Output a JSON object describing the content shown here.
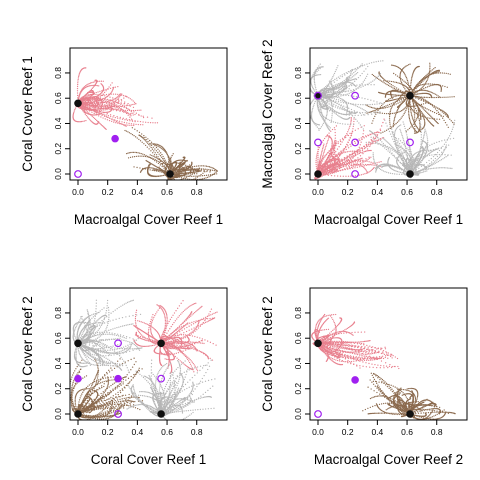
{
  "colors": {
    "pink": "#e8808e",
    "brown": "#8b6a4e",
    "gray": "#b6b6b6",
    "black": "#111111",
    "purple": "#a020f0",
    "axis": "#000000"
  },
  "chart_data": [
    {
      "type": "scatter",
      "xlabel": "Macroalgal Cover Reef 1",
      "ylabel": "Coral Cover Reef 1",
      "xlim": [
        0,
        0.95
      ],
      "ylim": [
        0,
        0.95
      ],
      "xticks": [
        "0.0",
        "0.2",
        "0.4",
        "0.6",
        "0.8"
      ],
      "yticks": [
        "0.0",
        "0.2",
        "0.4",
        "0.6",
        "0.8"
      ],
      "basins": [
        {
          "color": "pink",
          "target": [
            0.0,
            0.56
          ]
        },
        {
          "color": "brown",
          "target": [
            0.62,
            0.0
          ]
        }
      ],
      "equilibria": [
        {
          "x": 0.0,
          "y": 0.56,
          "marker": "filled",
          "color": "black"
        },
        {
          "x": 0.62,
          "y": 0.0,
          "marker": "filled",
          "color": "black"
        },
        {
          "x": 0.25,
          "y": 0.28,
          "marker": "filled",
          "color": "purple"
        },
        {
          "x": 0.0,
          "y": 0.0,
          "marker": "open",
          "color": "purple"
        }
      ]
    },
    {
      "type": "scatter",
      "xlabel": "Macroalgal Cover Reef 1",
      "ylabel": "Macroalgal Cover Reef 2",
      "xlim": [
        0,
        0.95
      ],
      "ylim": [
        0,
        0.95
      ],
      "xticks": [
        "0.0",
        "0.2",
        "0.4",
        "0.6",
        "0.8"
      ],
      "yticks": [
        "0.0",
        "0.2",
        "0.4",
        "0.6",
        "0.8"
      ],
      "basins": [
        {
          "color": "brown",
          "target": [
            0.62,
            0.62
          ]
        },
        {
          "color": "pink",
          "target": [
            0.0,
            0.0
          ]
        },
        {
          "color": "gray",
          "target": [
            0.0,
            0.62
          ]
        },
        {
          "color": "gray",
          "target": [
            0.62,
            0.0
          ]
        }
      ],
      "equilibria": [
        {
          "x": 0.0,
          "y": 0.62,
          "marker": "filled",
          "color": "black"
        },
        {
          "x": 0.62,
          "y": 0.62,
          "marker": "filled",
          "color": "black"
        },
        {
          "x": 0.0,
          "y": 0.0,
          "marker": "filled",
          "color": "black"
        },
        {
          "x": 0.62,
          "y": 0.0,
          "marker": "filled",
          "color": "black"
        },
        {
          "x": 0.25,
          "y": 0.62,
          "marker": "open",
          "color": "purple"
        },
        {
          "x": 0.0,
          "y": 0.25,
          "marker": "open",
          "color": "purple"
        },
        {
          "x": 0.25,
          "y": 0.25,
          "marker": "open",
          "color": "purple"
        },
        {
          "x": 0.62,
          "y": 0.25,
          "marker": "open",
          "color": "purple"
        },
        {
          "x": 0.25,
          "y": 0.0,
          "marker": "open",
          "color": "purple"
        },
        {
          "x": 0.0,
          "y": 0.62,
          "marker": "open",
          "color": "purple"
        }
      ]
    },
    {
      "type": "scatter",
      "xlabel": "Coral Cover Reef 1",
      "ylabel": "Coral Cover Reef 2",
      "xlim": [
        0,
        0.95
      ],
      "ylim": [
        0,
        0.95
      ],
      "xticks": [
        "0.0",
        "0.2",
        "0.4",
        "0.6",
        "0.8"
      ],
      "yticks": [
        "0.0",
        "0.2",
        "0.4",
        "0.6",
        "0.8"
      ],
      "basins": [
        {
          "color": "brown",
          "target": [
            0.0,
            0.0
          ]
        },
        {
          "color": "pink",
          "target": [
            0.56,
            0.56
          ]
        },
        {
          "color": "gray",
          "target": [
            0.0,
            0.56
          ]
        },
        {
          "color": "gray",
          "target": [
            0.56,
            0.0
          ]
        }
      ],
      "equilibria": [
        {
          "x": 0.0,
          "y": 0.56,
          "marker": "filled",
          "color": "black"
        },
        {
          "x": 0.56,
          "y": 0.56,
          "marker": "filled",
          "color": "black"
        },
        {
          "x": 0.0,
          "y": 0.0,
          "marker": "filled",
          "color": "black"
        },
        {
          "x": 0.56,
          "y": 0.0,
          "marker": "filled",
          "color": "black"
        },
        {
          "x": 0.27,
          "y": 0.56,
          "marker": "open",
          "color": "purple"
        },
        {
          "x": 0.0,
          "y": 0.28,
          "marker": "filled",
          "color": "purple"
        },
        {
          "x": 0.27,
          "y": 0.28,
          "marker": "filled",
          "color": "purple"
        },
        {
          "x": 0.56,
          "y": 0.28,
          "marker": "open",
          "color": "purple"
        },
        {
          "x": 0.27,
          "y": 0.0,
          "marker": "open",
          "color": "purple"
        }
      ]
    },
    {
      "type": "scatter",
      "xlabel": "Macroalgal Cover Reef 2",
      "ylabel": "Coral Cover Reef 2",
      "xlim": [
        0,
        0.95
      ],
      "ylim": [
        0,
        0.95
      ],
      "xticks": [
        "0.0",
        "0.2",
        "0.4",
        "0.6",
        "0.8"
      ],
      "yticks": [
        "0.0",
        "0.2",
        "0.4",
        "0.6",
        "0.8"
      ],
      "basins": [
        {
          "color": "pink",
          "target": [
            0.0,
            0.56
          ]
        },
        {
          "color": "brown",
          "target": [
            0.62,
            0.0
          ]
        }
      ],
      "equilibria": [
        {
          "x": 0.0,
          "y": 0.56,
          "marker": "filled",
          "color": "black"
        },
        {
          "x": 0.62,
          "y": 0.0,
          "marker": "filled",
          "color": "black"
        },
        {
          "x": 0.25,
          "y": 0.27,
          "marker": "filled",
          "color": "purple"
        },
        {
          "x": 0.0,
          "y": 0.0,
          "marker": "open",
          "color": "purple"
        }
      ]
    }
  ]
}
